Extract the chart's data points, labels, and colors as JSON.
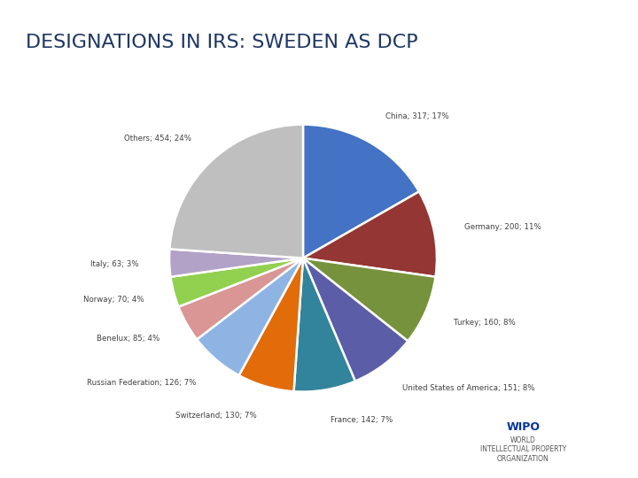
{
  "title": "DESIGNATIONS IN IRS: SWEDEN AS DCP",
  "slices": [
    {
      "label": "China",
      "value": 317,
      "pct": 17,
      "color": "#4472C4"
    },
    {
      "label": "Germany",
      "value": 200,
      "pct": 11,
      "color": "#943634"
    },
    {
      "label": "Turkey",
      "value": 160,
      "pct": 8,
      "color": "#76923C"
    },
    {
      "label": "United States of America",
      "value": 151,
      "pct": 8,
      "color": "#5B5EA6"
    },
    {
      "label": "France",
      "value": 142,
      "pct": 7,
      "color": "#31849B"
    },
    {
      "label": "Switzerland",
      "value": 130,
      "pct": 7,
      "color": "#E26B0A"
    },
    {
      "label": "Russian Federation",
      "value": 126,
      "pct": 7,
      "color": "#8EB4E3"
    },
    {
      "label": "Benelux",
      "value": 85,
      "pct": 4,
      "color": "#D99694"
    },
    {
      "label": "Norway",
      "value": 70,
      "pct": 4,
      "color": "#92D050"
    },
    {
      "label": "Italy",
      "value": 63,
      "pct": 3,
      "color": "#B2A2C7"
    },
    {
      "label": "Others",
      "value": 454,
      "pct": 24,
      "color": "#BFBFBF"
    }
  ],
  "title_color": "#1F3864",
  "title_fontsize": 16,
  "bg_color": "#FFFFFF",
  "startangle": 90,
  "wipo_text": [
    "WIPO",
    "WORLD",
    "INTELLECTUAL PROPERTY",
    "ORGANIZATION"
  ]
}
